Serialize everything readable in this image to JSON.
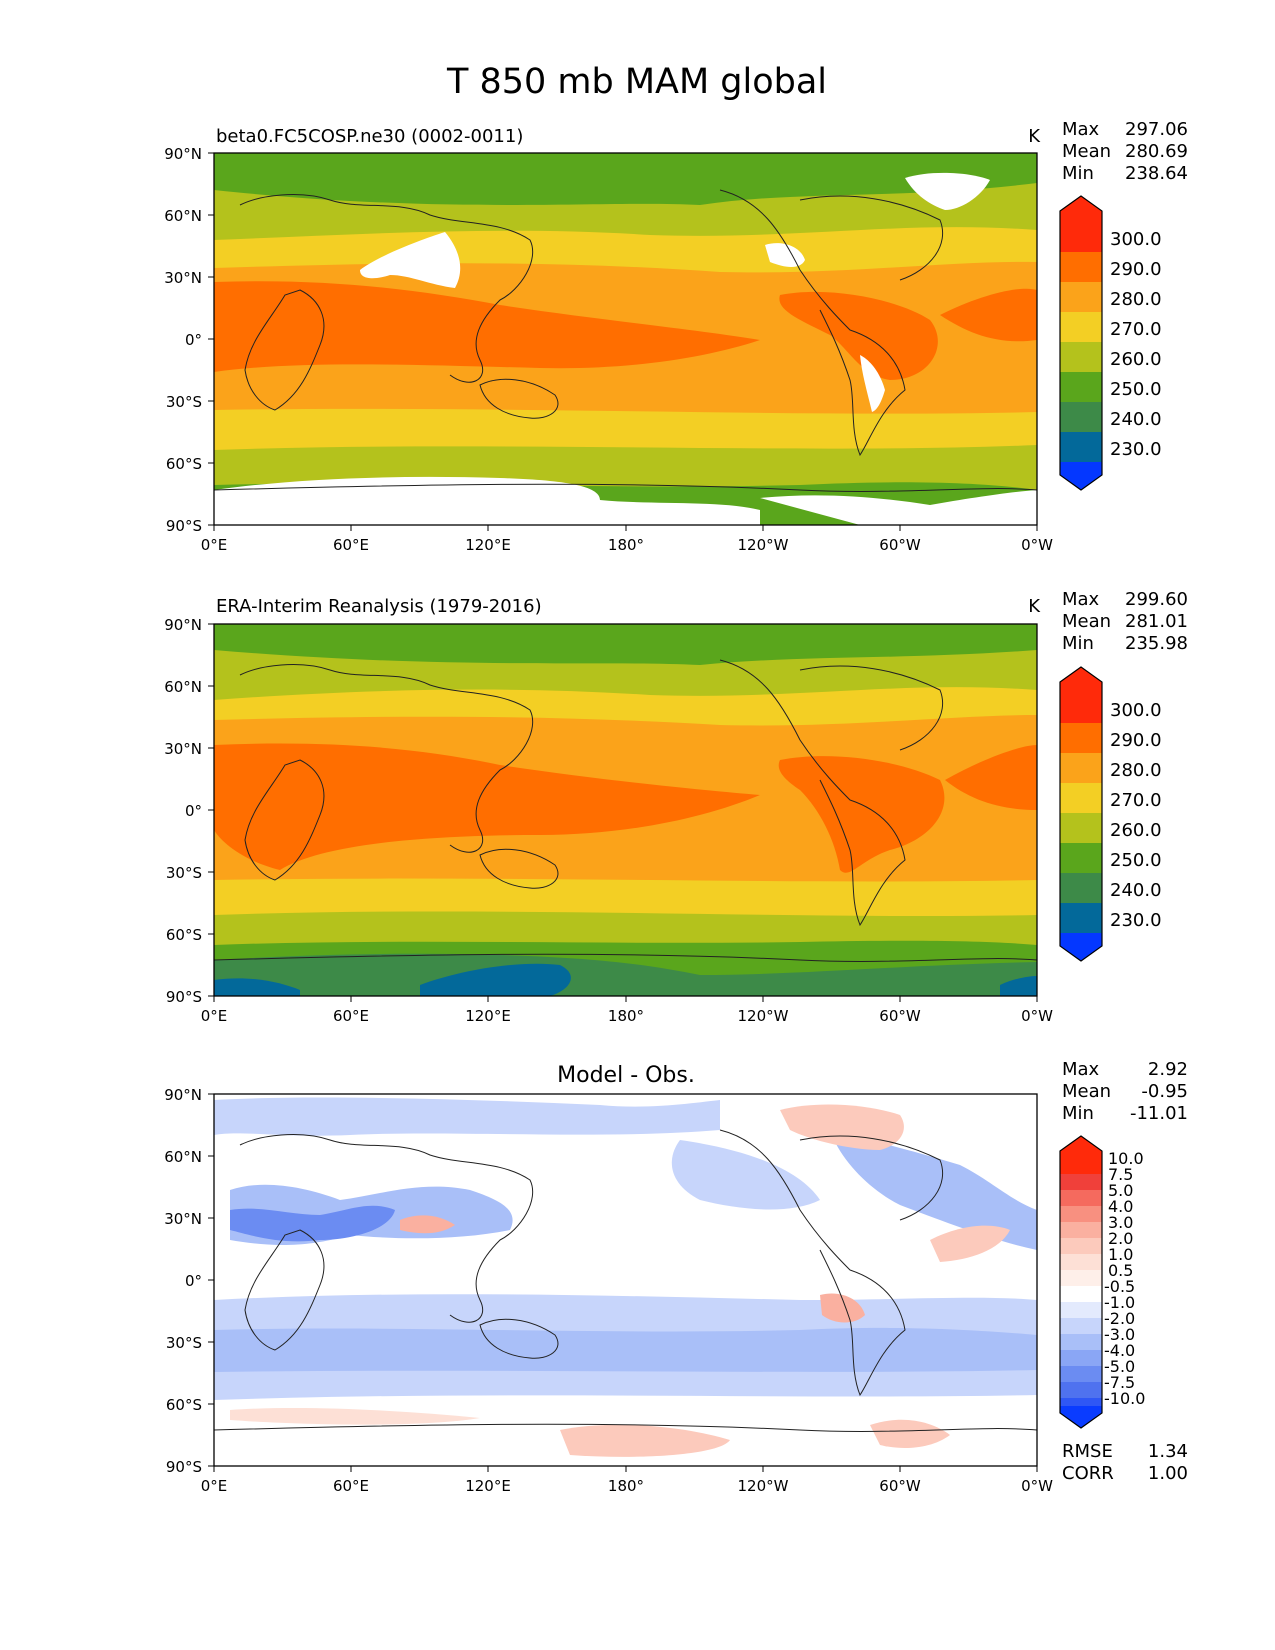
{
  "figure": {
    "title": "T 850 mb MAM global"
  },
  "axes": {
    "lat_labels": [
      "90°N",
      "60°N",
      "30°N",
      "0°",
      "30°S",
      "60°S",
      "90°S"
    ],
    "lon_labels": [
      "0°E",
      "60°E",
      "120°E",
      "180°",
      "120°W",
      "60°W",
      "0°W"
    ]
  },
  "panels": [
    {
      "id": "model",
      "title_left": "beta0.FC5COSP.ne30 (0002-0011)",
      "title_center": "",
      "units": "K",
      "stats": [
        {
          "label": "Max",
          "value": "297.06"
        },
        {
          "label": "Mean",
          "value": "280.69"
        },
        {
          "label": "Min",
          "value": "238.64"
        }
      ],
      "colorbar": {
        "levels": [
          "300.0",
          "290.0",
          "280.0",
          "270.0",
          "260.0",
          "250.0",
          "240.0",
          "230.0"
        ],
        "colors": [
          "#ff2a0a",
          "#ff6e00",
          "#fba31a",
          "#f3cf24",
          "#b4c21c",
          "#5aa61c",
          "#3d8a48",
          "#03699a",
          "#0437ff"
        ]
      },
      "extra_stats": []
    },
    {
      "id": "obs",
      "title_left": "ERA-Interim Reanalysis (1979-2016)",
      "title_center": "",
      "units": "K",
      "stats": [
        {
          "label": "Max",
          "value": "299.60"
        },
        {
          "label": "Mean",
          "value": "281.01"
        },
        {
          "label": "Min",
          "value": "235.98"
        }
      ],
      "colorbar": {
        "levels": [
          "300.0",
          "290.0",
          "280.0",
          "270.0",
          "260.0",
          "250.0",
          "240.0",
          "230.0"
        ],
        "colors": [
          "#ff2a0a",
          "#ff6e00",
          "#fba31a",
          "#f3cf24",
          "#b4c21c",
          "#5aa61c",
          "#3d8a48",
          "#03699a",
          "#0437ff"
        ]
      },
      "extra_stats": []
    },
    {
      "id": "diff",
      "title_left": "",
      "title_center": "Model - Obs.",
      "units": "",
      "stats": [
        {
          "label": "Max",
          "value": "2.92"
        },
        {
          "label": "Mean",
          "value": "-0.95"
        },
        {
          "label": "Min",
          "value": "-11.01"
        }
      ],
      "colorbar": {
        "levels": [
          "10.0",
          "7.5",
          "5.0",
          "4.0",
          "3.0",
          "2.0",
          "1.0",
          "0.5",
          "-0.5",
          "-1.0",
          "-2.0",
          "-3.0",
          "-4.0",
          "-5.0",
          "-7.5",
          "-10.0"
        ],
        "colors": [
          "#ff2a0a",
          "#f0403a",
          "#f56a5e",
          "#f89080",
          "#fab0a0",
          "#fccabc",
          "#fde0d6",
          "#feefe9",
          "#ffffff",
          "#e3eafd",
          "#c7d5fb",
          "#a9bff8",
          "#8aa6f5",
          "#6b8cf2",
          "#4f72ef",
          "#2f57f5",
          "#0a3cff"
        ]
      },
      "extra_stats": [
        {
          "label": "RMSE",
          "value": "1.34"
        },
        {
          "label": "CORR",
          "value": "1.00"
        }
      ]
    }
  ]
}
